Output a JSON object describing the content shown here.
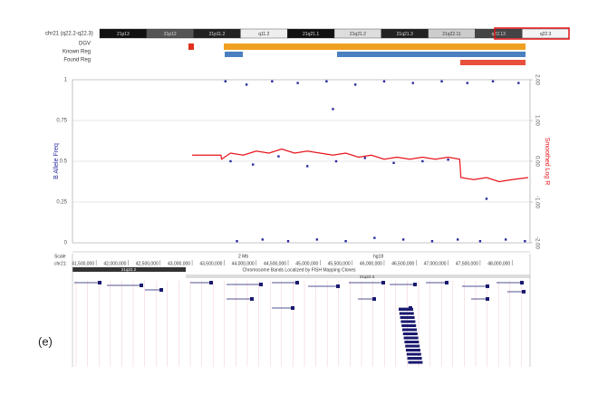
{
  "chart_data": {
    "type": "scatter-line",
    "title": "chr21 (q22.2-q22.3)",
    "bands": [
      "21p13",
      "21p12",
      "21p11.2",
      "q11.2",
      "21q21.1",
      "21q21.2",
      "21q21.3",
      "21q22.11",
      "q22.13",
      "q22.3"
    ],
    "tracks": [
      "DGV",
      "Known Reg",
      "Found Reg"
    ],
    "scale_label": "Scale",
    "chrom_label": "chr21:",
    "scale_bar": "2 Mb",
    "assembly": "hg18",
    "band_track": "Chromosome Bands Localized by FISH Mapping Clones",
    "band_names": [
      "21q22.2",
      "21q22.3"
    ],
    "panel_label": "(e)",
    "xlim": [
      41130000,
      48280000
    ],
    "xticks": [
      {
        "value": 41500000,
        "label": "41,500,000"
      },
      {
        "value": 42000000,
        "label": "42,000,000"
      },
      {
        "value": 42500000,
        "label": "42,500,000"
      },
      {
        "value": 43000000,
        "label": "43,000,000"
      },
      {
        "value": 43500000,
        "label": "43,500,000"
      },
      {
        "value": 44000000,
        "label": "44,000,000"
      },
      {
        "value": 44500000,
        "label": "44,500,000"
      },
      {
        "value": 45000000,
        "label": "45,000,000"
      },
      {
        "value": 45500000,
        "label": "45,500,000"
      },
      {
        "value": 46000000,
        "label": "46,000,000"
      },
      {
        "value": 46500000,
        "label": "46,500,000"
      },
      {
        "value": 47000000,
        "label": "47,000,000"
      },
      {
        "value": 47500000,
        "label": "47,500,000"
      },
      {
        "value": 48000000,
        "label": "48,000,000"
      }
    ],
    "ylim": [
      0,
      1
    ],
    "yticks": [
      0,
      0.25,
      0.5,
      0.75,
      1
    ],
    "y2lim": [
      -2,
      2
    ],
    "y2ticks": [
      {
        "value": -2,
        "label": "-2.00"
      },
      {
        "value": -1,
        "label": "-1.00"
      },
      {
        "value": 0,
        "label": "0.00"
      },
      {
        "value": 1,
        "label": "1.00"
      },
      {
        "value": 2,
        "label": "2.00"
      }
    ],
    "grid": true,
    "series": [
      {
        "name": "B Allele Freq",
        "color": "#2a2aa0",
        "kind": "scatter",
        "axis": "y",
        "x": [
          43520000,
          43600000,
          43700000,
          43850000,
          43950000,
          44100000,
          44250000,
          44350000,
          44500000,
          44650000,
          44800000,
          44950000,
          45100000,
          45250000,
          45400000,
          45550000,
          45700000,
          45850000,
          46000000,
          46150000,
          46300000,
          46450000,
          46600000,
          46750000,
          46900000,
          47000000,
          47150000,
          47300000,
          47500000,
          47700000,
          47900000,
          48100000,
          48200000,
          45200000,
          47600000
        ],
        "values": [
          0.99,
          0.5,
          0.01,
          0.97,
          0.48,
          0.02,
          0.99,
          0.53,
          0.01,
          0.98,
          0.47,
          0.02,
          0.99,
          0.5,
          0.01,
          0.97,
          0.52,
          0.03,
          0.99,
          0.49,
          0.02,
          0.98,
          0.5,
          0.01,
          0.99,
          0.51,
          0.02,
          0.98,
          0.01,
          0.99,
          0.02,
          0.98,
          0.01,
          0.82,
          0.27
        ]
      },
      {
        "name": "Smoothed Log R",
        "color": "#e8141c",
        "kind": "line",
        "axis": "y2",
        "x": [
          43000000,
          43450000,
          43460000,
          43600000,
          43800000,
          44000000,
          44200000,
          44400000,
          44600000,
          44800000,
          45000000,
          45200000,
          45400000,
          45600000,
          45800000,
          46000000,
          46200000,
          46400000,
          46600000,
          46800000,
          47000000,
          47180000,
          47200000,
          47400000,
          47600000,
          47800000,
          48000000,
          48250000
        ],
        "values": [
          0.15,
          0.15,
          0.05,
          0.2,
          0.15,
          0.25,
          0.2,
          0.3,
          0.2,
          0.25,
          0.2,
          0.15,
          0.2,
          0.1,
          0.15,
          0.05,
          0.1,
          0.05,
          0.1,
          0.05,
          0.1,
          0.05,
          -0.4,
          -0.45,
          -0.4,
          -0.5,
          -0.45,
          -0.4
        ]
      }
    ]
  }
}
